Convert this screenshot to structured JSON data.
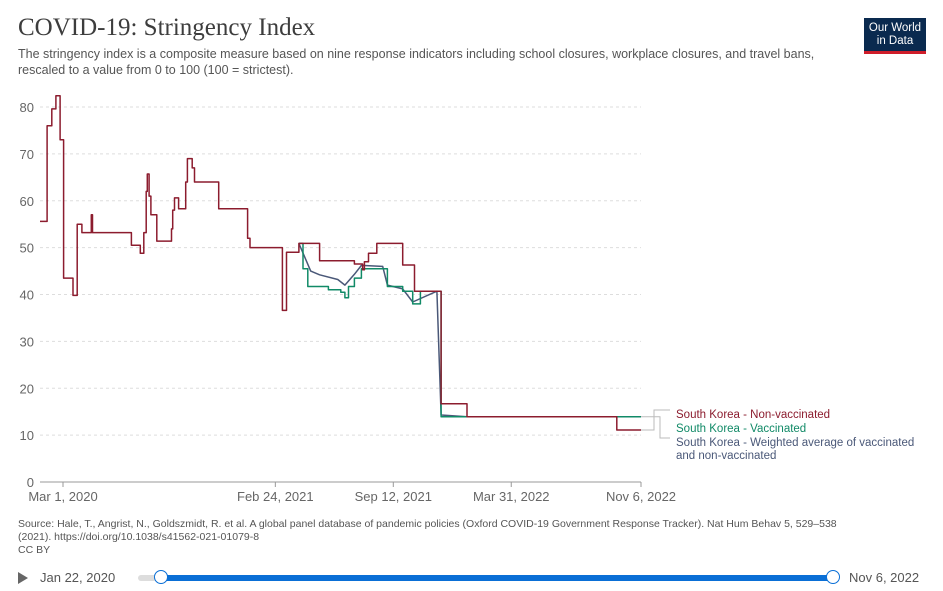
{
  "header": {
    "title": "COVID-19: Stringency Index",
    "subtitle": "The stringency index is a composite measure based on nine response indicators including school closures, workplace closures, and travel bans, rescaled to a value from 0 to 100 (100 = strictest).",
    "logo_line1": "Our World",
    "logo_line2": "in Data"
  },
  "source": {
    "line1": "Source: Hale, T., Angrist, N., Goldszmidt, R. et al. A global panel database of pandemic policies (Oxford COVID-19 Government Response Tracker). Nat Hum Behav 5, 529–538",
    "line2": "(2021). https://doi.org/10.1038/s41562-021-01079-8",
    "line3": "CC BY"
  },
  "timeline": {
    "start_label": "Jan 22, 2020",
    "end_label": "Nov 6, 2022"
  },
  "colors": {
    "non_vaccinated": "#8c1c2e",
    "vaccinated": "#118a67",
    "weighted": "#4a5878",
    "grid": "#dddddd",
    "axis_text": "#666666"
  },
  "chart_data": {
    "type": "line",
    "title": "COVID-19: Stringency Index",
    "xlabel": "",
    "ylabel": "",
    "ylim": [
      0,
      80
    ],
    "yticks": [
      0,
      10,
      20,
      30,
      40,
      50,
      60,
      70,
      80
    ],
    "x_range": [
      "2020-01-22",
      "2022-11-06"
    ],
    "xticks": [
      {
        "date": "2020-03-01",
        "label": "Mar 1, 2020"
      },
      {
        "date": "2021-02-24",
        "label": "Feb 24, 2021"
      },
      {
        "date": "2021-09-12",
        "label": "Sep 12, 2021"
      },
      {
        "date": "2022-03-31",
        "label": "Mar 31, 2022"
      },
      {
        "date": "2022-11-06",
        "label": "Nov 6, 2022"
      }
    ],
    "legend_position": "right",
    "series": [
      {
        "name": "South Korea - Non-vaccinated",
        "legend": "South Korea - Non-vaccinated",
        "step": true,
        "points": [
          [
            "2020-01-22",
            55.6
          ],
          [
            "2020-02-03",
            76
          ],
          [
            "2020-02-11",
            79.6
          ],
          [
            "2020-02-18",
            82.4
          ],
          [
            "2020-02-25",
            73
          ],
          [
            "2020-03-02",
            43.5
          ],
          [
            "2020-03-18",
            39.8
          ],
          [
            "2020-03-25",
            55
          ],
          [
            "2020-04-02",
            53.2
          ],
          [
            "2020-04-15",
            53.2
          ],
          [
            "2020-04-18",
            57
          ],
          [
            "2020-04-20",
            53.2
          ],
          [
            "2020-06-25",
            50.5
          ],
          [
            "2020-07-10",
            48.8
          ],
          [
            "2020-07-16",
            53.2
          ],
          [
            "2020-07-20",
            62
          ],
          [
            "2020-07-22",
            65.7
          ],
          [
            "2020-07-25",
            61
          ],
          [
            "2020-07-28",
            57
          ],
          [
            "2020-08-07",
            51.4
          ],
          [
            "2020-09-01",
            54
          ],
          [
            "2020-09-03",
            58
          ],
          [
            "2020-09-06",
            60.6
          ],
          [
            "2020-09-13",
            58.3
          ],
          [
            "2020-09-20",
            58.3
          ],
          [
            "2020-09-25",
            64
          ],
          [
            "2020-09-28",
            69
          ],
          [
            "2020-10-06",
            67
          ],
          [
            "2020-10-10",
            64
          ],
          [
            "2020-11-20",
            58.3
          ],
          [
            "2021-01-05",
            58.3
          ],
          [
            "2021-01-08",
            52
          ],
          [
            "2021-01-12",
            50
          ],
          [
            "2021-02-24",
            50
          ],
          [
            "2021-03-08",
            36.6
          ],
          [
            "2021-03-15",
            49
          ],
          [
            "2021-04-05",
            50.9
          ],
          [
            "2021-05-10",
            47.2
          ],
          [
            "2021-06-20",
            47.2
          ],
          [
            "2021-07-08",
            46.5
          ],
          [
            "2021-07-22",
            45.3
          ],
          [
            "2021-07-25",
            47
          ],
          [
            "2021-08-01",
            48.8
          ],
          [
            "2021-08-15",
            50.9
          ],
          [
            "2021-09-28",
            46.3
          ],
          [
            "2021-10-18",
            40.7
          ],
          [
            "2021-11-25",
            40.7
          ],
          [
            "2021-12-02",
            16.7
          ],
          [
            "2022-01-15",
            13.9
          ],
          [
            "2022-04-18",
            13.9
          ],
          [
            "2022-09-26",
            11.1
          ],
          [
            "2022-11-06",
            11.1
          ]
        ]
      },
      {
        "name": "South Korea - Vaccinated",
        "legend": "South Korea - Vaccinated",
        "step": true,
        "points": [
          [
            "2021-04-05",
            50.9
          ],
          [
            "2021-04-12",
            45.5
          ],
          [
            "2021-04-20",
            41.7
          ],
          [
            "2021-05-25",
            41.0
          ],
          [
            "2021-06-15",
            40.5
          ],
          [
            "2021-06-22",
            39.3
          ],
          [
            "2021-06-28",
            41.7
          ],
          [
            "2021-07-08",
            43.5
          ],
          [
            "2021-07-20",
            45.5
          ],
          [
            "2021-08-25",
            45.5
          ],
          [
            "2021-09-02",
            41.7
          ],
          [
            "2021-09-28",
            40.7
          ],
          [
            "2021-10-15",
            38.0
          ],
          [
            "2021-10-28",
            40.7
          ],
          [
            "2021-11-25",
            40.7
          ],
          [
            "2021-12-02",
            13.9
          ],
          [
            "2022-11-06",
            13.9
          ]
        ]
      },
      {
        "name": "South Korea - Weighted average of vaccinated and non-vaccinated",
        "legend_line1": "South Korea - Weighted average of vaccinated",
        "legend_line2": "and non-vaccinated",
        "step": false,
        "points": [
          [
            "2021-04-05",
            50.9
          ],
          [
            "2021-04-25",
            45.0
          ],
          [
            "2021-05-10",
            44.2
          ],
          [
            "2021-06-10",
            43.2
          ],
          [
            "2021-06-22",
            42.0
          ],
          [
            "2021-07-08",
            44.3
          ],
          [
            "2021-07-20",
            46.2
          ],
          [
            "2021-08-25",
            46.0
          ],
          [
            "2021-09-02",
            42.0
          ],
          [
            "2021-09-28",
            41.2
          ],
          [
            "2021-10-15",
            38.4
          ],
          [
            "2021-11-25",
            40.7
          ],
          [
            "2021-12-02",
            14.3
          ],
          [
            "2022-01-15",
            13.9
          ]
        ]
      }
    ]
  }
}
